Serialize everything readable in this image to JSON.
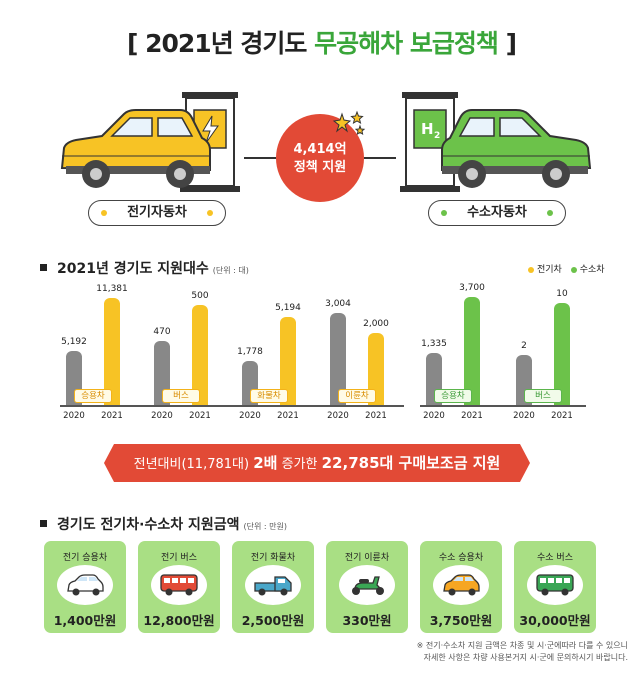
{
  "header": {
    "bracket_open": "[",
    "title_part1": "2021년 경기도",
    "title_part2": "무공해차 보급정책",
    "bracket_close": "]"
  },
  "hero": {
    "center_badge_line1": "4,414억",
    "center_badge_line2": "정책 지원",
    "h2_label": "H",
    "h2_sub": "2",
    "left_label": "전기자동차",
    "right_label": "수소자동차",
    "colors": {
      "ev": "#f7c325",
      "hydrogen": "#6cc24a",
      "badge": "#e24a36"
    }
  },
  "section1": {
    "heading": "2021년 경기도 지원대수",
    "unit": "(단위 : 대)",
    "legend": [
      {
        "label": "전기차",
        "color": "#f7c325"
      },
      {
        "label": "수소차",
        "color": "#6cc24a"
      }
    ]
  },
  "chart_data": {
    "type": "bar",
    "x": [
      "2020",
      "2021"
    ],
    "groups": [
      {
        "category": "승용차",
        "kind": "ev",
        "values": [
          5192,
          11381
        ],
        "labels": [
          "5,192",
          "11,381"
        ]
      },
      {
        "category": "버스",
        "kind": "ev",
        "values": [
          470,
          500
        ],
        "labels": [
          "470",
          "500"
        ]
      },
      {
        "category": "화물차",
        "kind": "ev",
        "values": [
          1778,
          5194
        ],
        "labels": [
          "1,778",
          "5,194"
        ]
      },
      {
        "category": "이륜차",
        "kind": "ev",
        "values": [
          3004,
          2000
        ],
        "labels": [
          "3,004",
          "2,000"
        ]
      },
      {
        "category": "승용차",
        "kind": "hydrogen",
        "values": [
          1335,
          3700
        ],
        "labels": [
          "1,335",
          "3,700"
        ]
      },
      {
        "category": "버스",
        "kind": "hydrogen",
        "values": [
          2,
          10
        ],
        "labels": [
          "2",
          "10"
        ]
      }
    ],
    "bar_fill_fractions": [
      [
        0.49,
        0.97
      ],
      [
        0.58,
        0.91
      ],
      [
        0.4,
        0.8
      ],
      [
        0.84,
        0.65
      ],
      [
        0.47,
        0.98
      ],
      [
        0.45,
        0.93
      ]
    ],
    "colors": {
      "2020": "#888888",
      "ev_2021": "#f7c325",
      "hydrogen_2021": "#6cc24a"
    }
  },
  "banner": {
    "part1": "전년대비(11,781대)",
    "part2": "2배",
    "part3": "증가한",
    "part4": "22,785대 구매보조금 지원"
  },
  "section2": {
    "heading": "경기도 전기차·수소차 지원금액",
    "unit": "(단위 : 만원)",
    "cards": [
      {
        "name": "전기 승용차",
        "amount": "1,400만원",
        "icon": "white-car-icon"
      },
      {
        "name": "전기 버스",
        "amount": "12,800만원",
        "icon": "red-bus-icon"
      },
      {
        "name": "전기 화물차",
        "amount": "2,500만원",
        "icon": "truck-icon"
      },
      {
        "name": "전기 이륜차",
        "amount": "330만원",
        "icon": "scooter-icon"
      },
      {
        "name": "수소 승용차",
        "amount": "3,750만원",
        "icon": "orange-car-icon"
      },
      {
        "name": "수소 버스",
        "amount": "30,000만원",
        "icon": "green-bus-icon"
      }
    ]
  },
  "footnote": {
    "line1": "※ 전기·수소차 지원 금액은 차종 및 시·군에따라 다를 수 있으니",
    "line2": "자세한 사항은 차량 사용본거지 시·군에 문의하시기 바랍니다."
  }
}
